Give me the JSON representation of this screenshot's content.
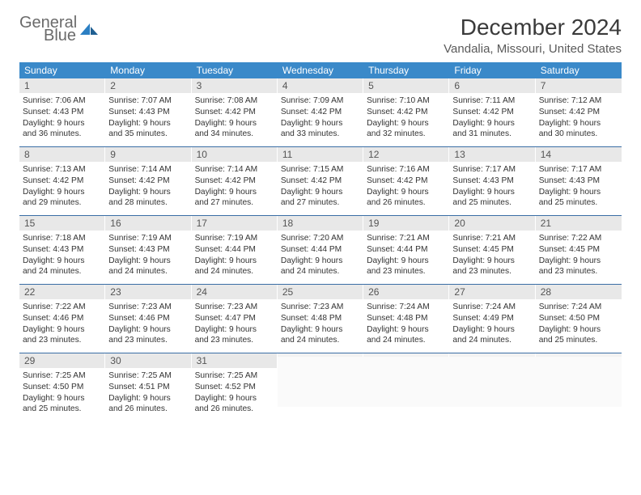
{
  "logo": {
    "topWord": "General",
    "bottomWord": "Blue",
    "iconColor": "#2b7fc3"
  },
  "title": "December 2024",
  "location": "Vandalia, Missouri, United States",
  "colors": {
    "headerBg": "#3a89c9",
    "weekBorder": "#3a6ea5",
    "dayNumBg": "#e8e8e8"
  },
  "dayHeaders": [
    "Sunday",
    "Monday",
    "Tuesday",
    "Wednesday",
    "Thursday",
    "Friday",
    "Saturday"
  ],
  "weeks": [
    [
      {
        "n": "1",
        "sunrise": "7:06 AM",
        "sunset": "4:43 PM",
        "dayH": "9",
        "dayM": "36"
      },
      {
        "n": "2",
        "sunrise": "7:07 AM",
        "sunset": "4:43 PM",
        "dayH": "9",
        "dayM": "35"
      },
      {
        "n": "3",
        "sunrise": "7:08 AM",
        "sunset": "4:42 PM",
        "dayH": "9",
        "dayM": "34"
      },
      {
        "n": "4",
        "sunrise": "7:09 AM",
        "sunset": "4:42 PM",
        "dayH": "9",
        "dayM": "33"
      },
      {
        "n": "5",
        "sunrise": "7:10 AM",
        "sunset": "4:42 PM",
        "dayH": "9",
        "dayM": "32"
      },
      {
        "n": "6",
        "sunrise": "7:11 AM",
        "sunset": "4:42 PM",
        "dayH": "9",
        "dayM": "31"
      },
      {
        "n": "7",
        "sunrise": "7:12 AM",
        "sunset": "4:42 PM",
        "dayH": "9",
        "dayM": "30"
      }
    ],
    [
      {
        "n": "8",
        "sunrise": "7:13 AM",
        "sunset": "4:42 PM",
        "dayH": "9",
        "dayM": "29"
      },
      {
        "n": "9",
        "sunrise": "7:14 AM",
        "sunset": "4:42 PM",
        "dayH": "9",
        "dayM": "28"
      },
      {
        "n": "10",
        "sunrise": "7:14 AM",
        "sunset": "4:42 PM",
        "dayH": "9",
        "dayM": "27"
      },
      {
        "n": "11",
        "sunrise": "7:15 AM",
        "sunset": "4:42 PM",
        "dayH": "9",
        "dayM": "27"
      },
      {
        "n": "12",
        "sunrise": "7:16 AM",
        "sunset": "4:42 PM",
        "dayH": "9",
        "dayM": "26"
      },
      {
        "n": "13",
        "sunrise": "7:17 AM",
        "sunset": "4:43 PM",
        "dayH": "9",
        "dayM": "25"
      },
      {
        "n": "14",
        "sunrise": "7:17 AM",
        "sunset": "4:43 PM",
        "dayH": "9",
        "dayM": "25"
      }
    ],
    [
      {
        "n": "15",
        "sunrise": "7:18 AM",
        "sunset": "4:43 PM",
        "dayH": "9",
        "dayM": "24"
      },
      {
        "n": "16",
        "sunrise": "7:19 AM",
        "sunset": "4:43 PM",
        "dayH": "9",
        "dayM": "24"
      },
      {
        "n": "17",
        "sunrise": "7:19 AM",
        "sunset": "4:44 PM",
        "dayH": "9",
        "dayM": "24"
      },
      {
        "n": "18",
        "sunrise": "7:20 AM",
        "sunset": "4:44 PM",
        "dayH": "9",
        "dayM": "24"
      },
      {
        "n": "19",
        "sunrise": "7:21 AM",
        "sunset": "4:44 PM",
        "dayH": "9",
        "dayM": "23"
      },
      {
        "n": "20",
        "sunrise": "7:21 AM",
        "sunset": "4:45 PM",
        "dayH": "9",
        "dayM": "23"
      },
      {
        "n": "21",
        "sunrise": "7:22 AM",
        "sunset": "4:45 PM",
        "dayH": "9",
        "dayM": "23"
      }
    ],
    [
      {
        "n": "22",
        "sunrise": "7:22 AM",
        "sunset": "4:46 PM",
        "dayH": "9",
        "dayM": "23"
      },
      {
        "n": "23",
        "sunrise": "7:23 AM",
        "sunset": "4:46 PM",
        "dayH": "9",
        "dayM": "23"
      },
      {
        "n": "24",
        "sunrise": "7:23 AM",
        "sunset": "4:47 PM",
        "dayH": "9",
        "dayM": "23"
      },
      {
        "n": "25",
        "sunrise": "7:23 AM",
        "sunset": "4:48 PM",
        "dayH": "9",
        "dayM": "24"
      },
      {
        "n": "26",
        "sunrise": "7:24 AM",
        "sunset": "4:48 PM",
        "dayH": "9",
        "dayM": "24"
      },
      {
        "n": "27",
        "sunrise": "7:24 AM",
        "sunset": "4:49 PM",
        "dayH": "9",
        "dayM": "24"
      },
      {
        "n": "28",
        "sunrise": "7:24 AM",
        "sunset": "4:50 PM",
        "dayH": "9",
        "dayM": "25"
      }
    ],
    [
      {
        "n": "29",
        "sunrise": "7:25 AM",
        "sunset": "4:50 PM",
        "dayH": "9",
        "dayM": "25"
      },
      {
        "n": "30",
        "sunrise": "7:25 AM",
        "sunset": "4:51 PM",
        "dayH": "9",
        "dayM": "26"
      },
      {
        "n": "31",
        "sunrise": "7:25 AM",
        "sunset": "4:52 PM",
        "dayH": "9",
        "dayM": "26"
      },
      null,
      null,
      null,
      null
    ]
  ]
}
